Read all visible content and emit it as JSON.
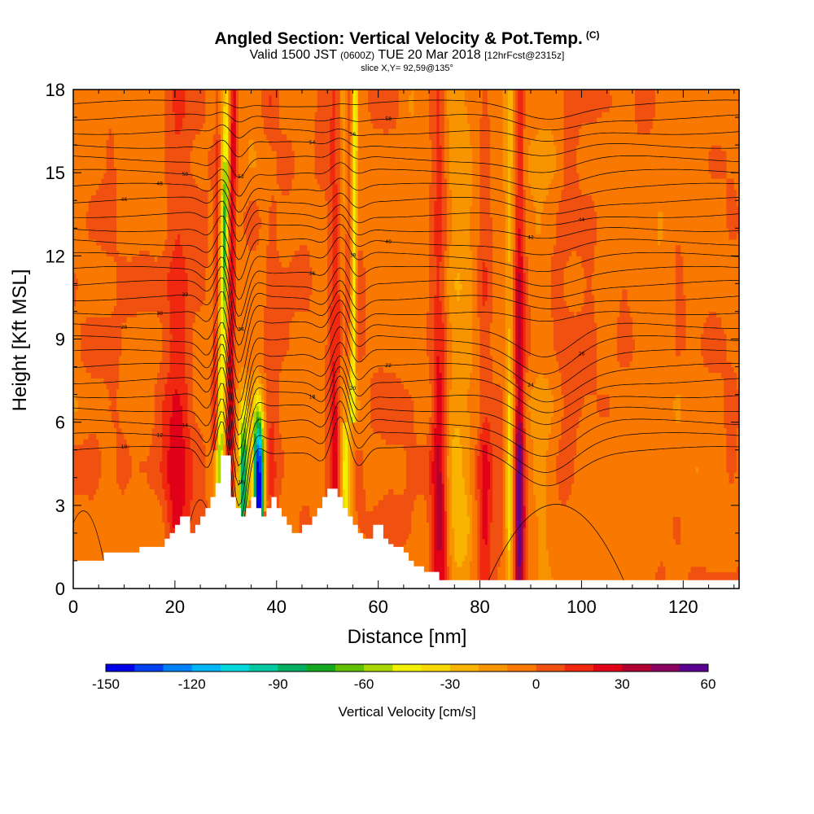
{
  "header": {
    "title": "Angled Section: Vertical Velocity & Pot.Temp.",
    "title_mark": "(C)",
    "valid_prefix": "Valid 1500 JST",
    "valid_utc": "(0600Z)",
    "valid_date": "TUE 20 Mar 2018",
    "forecast_info": "[12hrFcst@2315z]",
    "slice": "slice X,Y= 92,59@135°"
  },
  "chart_data": {
    "type": "heatmap",
    "xlabel": "Distance [nm]",
    "ylabel": "Height [Kft MSL]",
    "xlim": [
      0,
      131
    ],
    "ylim": [
      0,
      18
    ],
    "x_ticks": [
      0,
      20,
      40,
      60,
      80,
      100,
      120
    ],
    "y_ticks": [
      0,
      3,
      6,
      9,
      12,
      15,
      18
    ],
    "colorbar": {
      "title": "Vertical Velocity [cm/s]",
      "min": -150,
      "max": 60,
      "step": 10,
      "tick_labels": [
        -150,
        -120,
        -90,
        -60,
        -30,
        0,
        30,
        60
      ],
      "colors": [
        "#0000e8",
        "#0040f0",
        "#0080f8",
        "#00b4f8",
        "#00d8e0",
        "#00c8a0",
        "#00b060",
        "#14a820",
        "#60c000",
        "#a8d800",
        "#f0f000",
        "#f8d800",
        "#f8b400",
        "#f89400",
        "#f87800",
        "#f05010",
        "#f02810",
        "#e00018",
        "#b00030",
        "#8c0060",
        "#5a0090"
      ]
    },
    "terrain": {
      "x": [
        0,
        5,
        6,
        10,
        13,
        16,
        18,
        19,
        20,
        21,
        22,
        23,
        24,
        25,
        26,
        27,
        28,
        29,
        30,
        31,
        32,
        33,
        34,
        35,
        36,
        37,
        38,
        39,
        40,
        41,
        42,
        43,
        44,
        45,
        46,
        47,
        48,
        49,
        50,
        51,
        52,
        53,
        54,
        55,
        56,
        57,
        58,
        59,
        60,
        61,
        62,
        63,
        64,
        65,
        66,
        67,
        68,
        69,
        70,
        72,
        131
      ],
      "y": [
        1.0,
        1.0,
        1.3,
        1.3,
        1.5,
        1.5,
        1.8,
        2.0,
        2.3,
        2.6,
        2.6,
        2.0,
        2.3,
        2.6,
        2.9,
        3.3,
        3.8,
        4.8,
        4.8,
        3.3,
        2.9,
        2.6,
        2.9,
        3.3,
        2.9,
        2.6,
        2.9,
        3.3,
        2.9,
        2.6,
        2.3,
        2.0,
        2.0,
        2.3,
        2.3,
        2.6,
        2.9,
        3.3,
        3.6,
        3.6,
        3.3,
        2.9,
        2.6,
        2.3,
        2.0,
        1.8,
        1.8,
        2.3,
        2.3,
        1.8,
        1.6,
        1.5,
        1.5,
        1.3,
        1.0,
        0.8,
        0.8,
        0.6,
        0.6,
        0.3,
        0.3
      ]
    },
    "theta_contours": {
      "levels": [
        8,
        10,
        12,
        14,
        16,
        18,
        20,
        22,
        24,
        26,
        28,
        30,
        32,
        34,
        36,
        38,
        40,
        42,
        44,
        46,
        48,
        50,
        52,
        54,
        56,
        58
      ],
      "labels": [
        "10",
        "12",
        "14",
        "16",
        "18",
        "20",
        "22",
        "24",
        "26",
        "28",
        "30",
        "32",
        "34",
        "36",
        "38",
        "40",
        "42",
        "44",
        "46",
        "48",
        "50",
        "52",
        "54",
        "56",
        "58"
      ]
    },
    "updraft_columns": [
      {
        "x": 8,
        "w": 3,
        "amp": 6
      },
      {
        "x": 20.5,
        "w": 2.5,
        "amp": 30
      },
      {
        "x": 30.5,
        "w": 1.2,
        "amp": 28
      },
      {
        "x": 39,
        "w": 1.5,
        "amp": 14
      },
      {
        "x": 51.5,
        "w": 1.4,
        "amp": 34
      },
      {
        "x": 72,
        "w": 1.5,
        "amp": 40
      },
      {
        "x": 81,
        "w": 1.3,
        "amp": 24
      },
      {
        "x": 87.8,
        "w": 0.9,
        "amp": 58
      },
      {
        "x": 97,
        "w": 1.6,
        "amp": 6
      },
      {
        "x": 62,
        "w": 3,
        "amp": 5
      }
    ],
    "downdraft_columns": [
      {
        "x": 29,
        "w": 0.9,
        "amp": -58
      },
      {
        "x": 33.5,
        "w": 1.0,
        "amp": -90
      },
      {
        "x": 36.5,
        "w": 1.0,
        "amp": -150
      },
      {
        "x": 53.5,
        "w": 1.1,
        "amp": -45
      },
      {
        "x": 76,
        "w": 2.5,
        "amp": -26
      },
      {
        "x": 85.8,
        "w": 0.8,
        "amp": -38
      },
      {
        "x": 92,
        "w": 2,
        "amp": -12
      }
    ]
  }
}
